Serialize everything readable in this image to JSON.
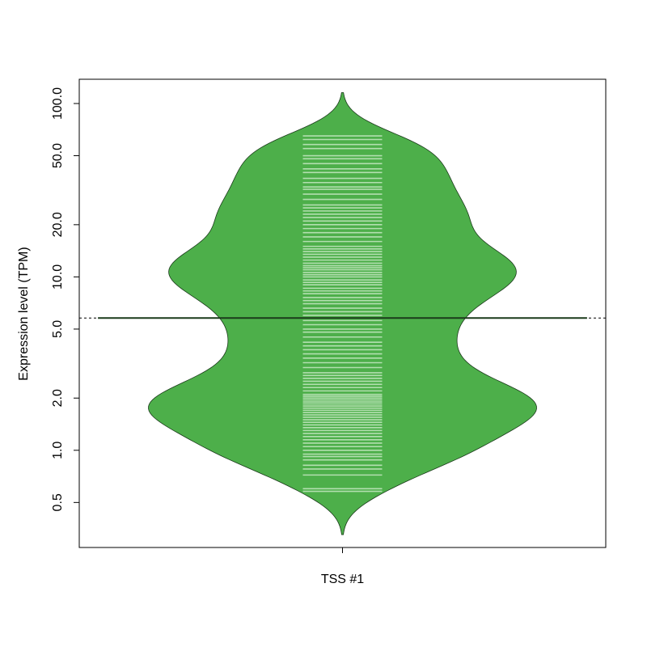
{
  "chart_data": {
    "type": "beanplot",
    "ylabel": "Expression level (TPM)",
    "categories": [
      "TSS #1"
    ],
    "values": [
      [
        0.58,
        0.6,
        0.72,
        0.78,
        0.82,
        0.88,
        0.92,
        0.95,
        1.0,
        1.05,
        1.1,
        1.15,
        1.2,
        1.25,
        1.3,
        1.35,
        1.4,
        1.45,
        1.5,
        1.55,
        1.6,
        1.65,
        1.7,
        1.75,
        1.8,
        1.85,
        1.9,
        1.95,
        2.0,
        2.05,
        2.1,
        2.2,
        2.3,
        2.4,
        2.5,
        2.6,
        2.7,
        2.8,
        3.0,
        3.2,
        3.4,
        3.6,
        3.8,
        4.0,
        4.2,
        4.5,
        4.8,
        5.0,
        5.3,
        5.6,
        6.0,
        6.3,
        6.6,
        7.0,
        7.3,
        7.6,
        8.0,
        8.3,
        8.6,
        9.0,
        9.3,
        9.6,
        10.0,
        10.3,
        10.6,
        11.0,
        11.3,
        11.6,
        12.0,
        12.5,
        13.0,
        13.5,
        14.0,
        14.5,
        15.0,
        16.0,
        17.0,
        18.0,
        19.0,
        20.0,
        21,
        22,
        23,
        24,
        25,
        26,
        28,
        30,
        32,
        33,
        35,
        37,
        40,
        42,
        45,
        48,
        50,
        55,
        58,
        62,
        65
      ]
    ],
    "log_y": true,
    "ylim": [
      0.275,
      138
    ],
    "yticks": [
      0.5,
      {
        "value": 1,
        "label": "1.0"
      },
      {
        "value": 2,
        "label": "2.0"
      },
      {
        "value": 5,
        "label": "5.0"
      },
      {
        "value": 10,
        "label": "10.0"
      },
      {
        "value": 20,
        "label": "20.0"
      },
      {
        "value": 50,
        "label": "50.0"
      },
      {
        "value": 100,
        "label": "100.0"
      }
    ],
    "color": "#4daf4a",
    "beanline_color": "#2e6b2e",
    "inner_color": "#b3dfb0"
  }
}
